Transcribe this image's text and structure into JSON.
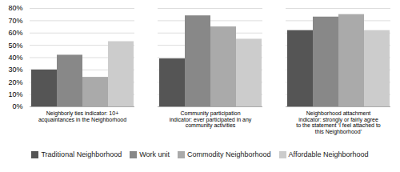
{
  "chart_data": {
    "type": "bar",
    "categories": [
      "Neighborly ties indicator: 10+\nacquaintances in the Neighborhood",
      "Community participation\nindicator: ever participated in any\ncommunity activities",
      "Neighborhood attachment\nindicator: strongly or fairly agree\nto the statement ‘I feel attached to\nthis Neighborhood’"
    ],
    "series": [
      {
        "name": "Traditional Neighborhood",
        "color": "#555555",
        "values": [
          0.3,
          0.39,
          0.62
        ]
      },
      {
        "name": "Work unit",
        "color": "#888888",
        "values": [
          0.42,
          0.74,
          0.73
        ]
      },
      {
        "name": "Commodity Neighborhood",
        "color": "#aaaaaa",
        "values": [
          0.24,
          0.65,
          0.75
        ]
      },
      {
        "name": "Affordable Neighborhood",
        "color": "#cccccc",
        "values": [
          0.53,
          0.55,
          0.62
        ]
      }
    ],
    "ylim": [
      0,
      0.8
    ],
    "yticks": [
      {
        "value": 0.0,
        "label": "0%"
      },
      {
        "value": 0.1,
        "label": "10%"
      },
      {
        "value": 0.2,
        "label": "20%"
      },
      {
        "value": 0.3,
        "label": "30%"
      },
      {
        "value": 0.4,
        "label": "40%"
      },
      {
        "value": 0.5,
        "label": "50%"
      },
      {
        "value": 0.6,
        "label": "60%"
      },
      {
        "value": 0.7,
        "label": "70%"
      },
      {
        "value": 0.8,
        "label": "80%"
      }
    ],
    "grid": true,
    "legend": "bottom"
  }
}
